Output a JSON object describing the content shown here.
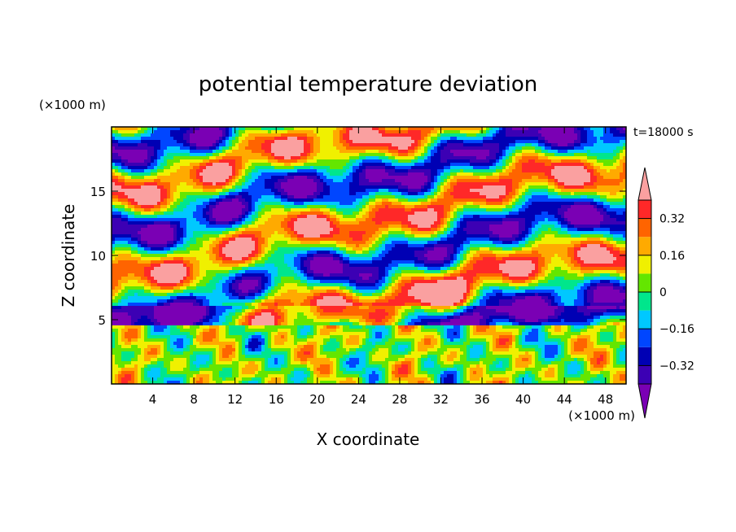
{
  "chart_data": {
    "type": "heatmap",
    "title": "potential temperature deviation",
    "xlabel": "X coordinate",
    "ylabel": "Z coordinate",
    "x_unit": "(×1000 m)",
    "y_unit": "(×1000 m)",
    "time_label": "t=18000 s",
    "xlim": [
      0,
      50
    ],
    "ylim": [
      0,
      20
    ],
    "x_ticks": [
      4,
      8,
      12,
      16,
      20,
      24,
      28,
      32,
      36,
      40,
      44,
      48
    ],
    "x_tick_labels": [
      "4",
      "8",
      "12",
      "16",
      "20",
      "24",
      "28",
      "32",
      "36",
      "40",
      "44",
      "48"
    ],
    "y_ticks": [
      5,
      10,
      15
    ],
    "y_tick_labels": [
      "5",
      "10",
      "15"
    ],
    "colorbar": {
      "levels": [
        -0.4,
        -0.32,
        -0.24,
        -0.16,
        -0.08,
        0,
        0.08,
        0.16,
        0.24,
        0.32,
        0.4
      ],
      "labels": [
        {
          "value": 0.32,
          "text": "0.32"
        },
        {
          "value": 0.16,
          "text": "0.16"
        },
        {
          "value": 0,
          "text": "0"
        },
        {
          "value": -0.16,
          "text": "−0.16"
        },
        {
          "value": -0.32,
          "text": "−0.32"
        }
      ],
      "colors": [
        "#7a00b4",
        "#3c00b4",
        "#0000b4",
        "#0046ff",
        "#00c8ff",
        "#00e68c",
        "#64e600",
        "#f0f000",
        "#ffaa00",
        "#ff6400",
        "#ff2828",
        "#faa0a0"
      ],
      "extend": "both"
    }
  }
}
